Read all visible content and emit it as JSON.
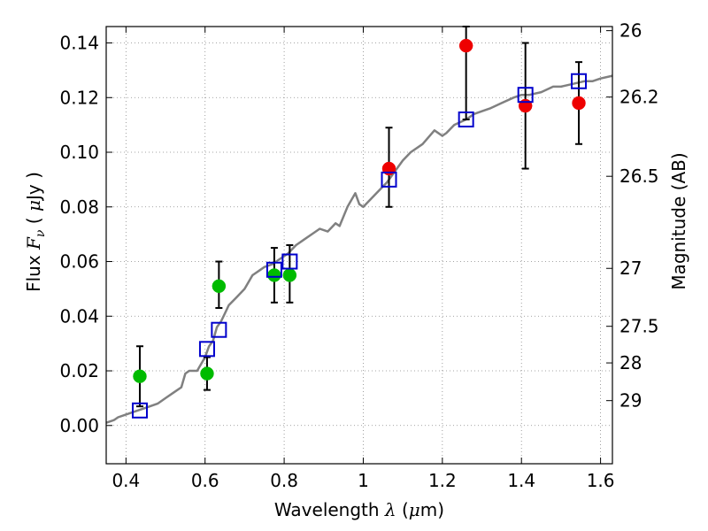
{
  "chart_data": {
    "type": "scatter",
    "xlabel_parts": {
      "text": "Wavelength  ",
      "symbol": "λ",
      "unit_open": " (",
      "unit_mu": "μ",
      "unit_rest": "m)"
    },
    "ylabel_parts": {
      "text": "Flux  ",
      "symbol": "F",
      "sub": "ν",
      "unit_open": "  ( ",
      "unit_mu": "μ",
      "unit_rest": "Jy )"
    },
    "y2label": "Magnitude (AB)",
    "xlim": [
      0.35,
      1.63
    ],
    "ylim": [
      -0.014,
      0.146
    ],
    "grid": true,
    "x_ticks": [
      {
        "value": 0.4,
        "label": "0.4"
      },
      {
        "value": 0.6,
        "label": "0.6"
      },
      {
        "value": 0.8,
        "label": "0.8"
      },
      {
        "value": 1.0,
        "label": "1"
      },
      {
        "value": 1.2,
        "label": "1.2"
      },
      {
        "value": 1.4,
        "label": "1.4"
      },
      {
        "value": 1.6,
        "label": "1.6"
      }
    ],
    "y_ticks": [
      {
        "value": 0.0,
        "label": "0.00"
      },
      {
        "value": 0.02,
        "label": "0.02"
      },
      {
        "value": 0.04,
        "label": "0.04"
      },
      {
        "value": 0.06,
        "label": "0.06"
      },
      {
        "value": 0.08,
        "label": "0.08"
      },
      {
        "value": 0.1,
        "label": "0.10"
      },
      {
        "value": 0.12,
        "label": "0.12"
      },
      {
        "value": 0.14,
        "label": "0.14"
      }
    ],
    "magnitude_ticks": [
      {
        "mag": "26",
        "flux": 0.1445
      },
      {
        "mag": "26.2",
        "flux": 0.1202
      },
      {
        "mag": "26.5",
        "flux": 0.0912
      },
      {
        "mag": "27",
        "flux": 0.0575
      },
      {
        "mag": "27.5",
        "flux": 0.0363
      },
      {
        "mag": "28",
        "flux": 0.0229
      },
      {
        "mag": "29",
        "flux": 0.0091
      }
    ],
    "colors": {
      "model": "#808080",
      "model_points": "#0000cc",
      "green": "#00bb00",
      "red": "#ee0000",
      "errorbar": "#000000",
      "grid": "#888888"
    },
    "model_spectrum": {
      "x": [
        0.35,
        0.37,
        0.38,
        0.4,
        0.42,
        0.44,
        0.46,
        0.48,
        0.5,
        0.52,
        0.54,
        0.55,
        0.56,
        0.58,
        0.6,
        0.61,
        0.62,
        0.63,
        0.64,
        0.65,
        0.66,
        0.68,
        0.7,
        0.72,
        0.74,
        0.75,
        0.77,
        0.79,
        0.81,
        0.83,
        0.85,
        0.87,
        0.89,
        0.91,
        0.93,
        0.94,
        0.96,
        0.98,
        0.99,
        1.0,
        1.02,
        1.04,
        1.06,
        1.08,
        1.1,
        1.12,
        1.15,
        1.18,
        1.2,
        1.21,
        1.23,
        1.26,
        1.28,
        1.3,
        1.32,
        1.35,
        1.38,
        1.4,
        1.42,
        1.45,
        1.48,
        1.5,
        1.53,
        1.56,
        1.58,
        1.6,
        1.63
      ],
      "y": [
        0.001,
        0.002,
        0.003,
        0.004,
        0.005,
        0.006,
        0.007,
        0.008,
        0.01,
        0.012,
        0.014,
        0.019,
        0.02,
        0.02,
        0.025,
        0.029,
        0.031,
        0.036,
        0.038,
        0.041,
        0.044,
        0.047,
        0.05,
        0.055,
        0.057,
        0.058,
        0.059,
        0.061,
        0.063,
        0.066,
        0.068,
        0.07,
        0.072,
        0.071,
        0.074,
        0.073,
        0.08,
        0.085,
        0.081,
        0.08,
        0.083,
        0.086,
        0.089,
        0.093,
        0.097,
        0.1,
        0.103,
        0.108,
        0.106,
        0.107,
        0.11,
        0.112,
        0.114,
        0.115,
        0.116,
        0.118,
        0.12,
        0.121,
        0.121,
        0.122,
        0.124,
        0.124,
        0.125,
        0.126,
        0.126,
        0.127,
        0.128
      ]
    },
    "model_points": {
      "x": [
        0.435,
        0.605,
        0.635,
        0.775,
        0.814,
        1.065,
        1.26,
        1.41,
        1.545
      ],
      "y": [
        0.0055,
        0.028,
        0.035,
        0.057,
        0.06,
        0.09,
        0.112,
        0.121,
        0.126
      ]
    },
    "observed_green": [
      {
        "x": 0.435,
        "y": 0.018,
        "lo": 0.007,
        "hi": 0.029
      },
      {
        "x": 0.605,
        "y": 0.019,
        "lo": 0.013,
        "hi": 0.025
      },
      {
        "x": 0.635,
        "y": 0.051,
        "lo": 0.043,
        "hi": 0.06
      },
      {
        "x": 0.775,
        "y": 0.055,
        "lo": 0.045,
        "hi": 0.065
      },
      {
        "x": 0.814,
        "y": 0.055,
        "lo": 0.045,
        "hi": 0.066
      }
    ],
    "observed_red": [
      {
        "x": 1.065,
        "y": 0.094,
        "lo": 0.08,
        "hi": 0.109
      },
      {
        "x": 1.26,
        "y": 0.139,
        "lo": 0.112,
        "hi": 0.146
      },
      {
        "x": 1.41,
        "y": 0.117,
        "lo": 0.094,
        "hi": 0.14
      },
      {
        "x": 1.545,
        "y": 0.118,
        "lo": 0.103,
        "hi": 0.133
      }
    ]
  }
}
